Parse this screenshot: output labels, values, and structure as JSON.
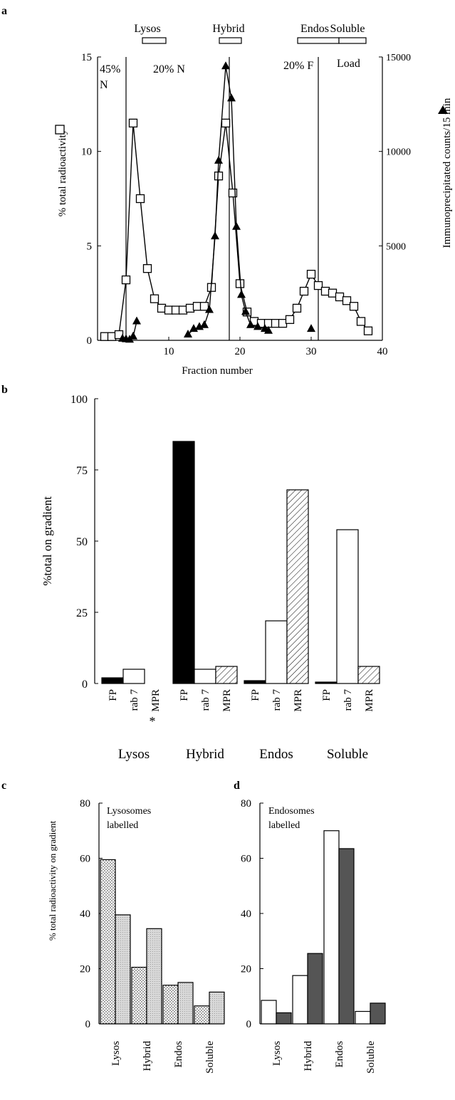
{
  "colors": {
    "ink": "#000000",
    "background": "#ffffff",
    "fp_fill": "#000000",
    "rab7_fill": "#ffffff",
    "mpr_fill": "hatched",
    "c_first_fill": "dotted light",
    "c_second_fill": "light grey stipple",
    "d_first_fill": "#ffffff",
    "d_second_fill": "#555555"
  },
  "chart_data": [
    {
      "panel": "a",
      "type": "line",
      "xlabel": "Fraction number",
      "ylabel": "% total radioactivity",
      "y2label": "Immunoprecipitated counts/15 min",
      "xlim": [
        0,
        40
      ],
      "ylim": [
        0,
        15
      ],
      "y2lim": [
        0,
        15000
      ],
      "xticks": [
        "10",
        "20",
        "30",
        "40"
      ],
      "yticks": [
        "0",
        "5",
        "10",
        "15"
      ],
      "y2ticks": [
        "5000",
        "10000",
        "15000"
      ],
      "series": [
        {
          "marker": "open-square",
          "axis": "left",
          "x": [
            1,
            2,
            3,
            4,
            5,
            6,
            7,
            8,
            9,
            10,
            11,
            12,
            13,
            14,
            15,
            16,
            17,
            18,
            19,
            20,
            21,
            22,
            23,
            24,
            25,
            26,
            27,
            28,
            29,
            30,
            31,
            32,
            33,
            34,
            35,
            36,
            37,
            38
          ],
          "y": [
            0.2,
            0.2,
            0.3,
            3.2,
            11.5,
            7.5,
            3.8,
            2.2,
            1.7,
            1.6,
            1.6,
            1.6,
            1.7,
            1.8,
            1.8,
            2.8,
            8.7,
            11.5,
            7.8,
            3.0,
            1.5,
            1.0,
            0.9,
            0.9,
            0.9,
            0.9,
            1.1,
            1.7,
            2.6,
            3.5,
            2.9,
            2.6,
            2.5,
            2.3,
            2.1,
            1.8,
            1.0,
            0.5
          ]
        },
        {
          "marker": "filled-triangle",
          "axis": "right",
          "x": [
            3.5,
            4,
            4.5,
            5,
            5.5,
            12.7,
            13.5,
            14.3,
            15,
            15.7,
            16.5,
            17,
            18,
            18.8,
            19.5,
            20.2,
            20.8,
            21.5,
            22.5,
            23.5,
            24,
            30
          ],
          "y": [
            80,
            50,
            30,
            200,
            1000,
            300,
            600,
            700,
            800,
            1600,
            5500,
            9500,
            14500,
            12800,
            6000,
            2400,
            1500,
            800,
            700,
            600,
            500,
            600
          ]
        }
      ],
      "vlines": [
        4,
        18.5,
        31
      ],
      "region_labels": [
        "45%",
        "N",
        "20% N",
        "20% F",
        "Load"
      ],
      "bands": [
        "Lysos",
        "Hybrid",
        "Endos",
        "Soluble"
      ]
    },
    {
      "panel": "b",
      "type": "bar",
      "ylabel": "%total on gradient",
      "ylim": [
        0,
        100
      ],
      "yticks": [
        "0",
        "25",
        "50",
        "75",
        "100"
      ],
      "groups": [
        "Lysos",
        "Hybrid",
        "Endos",
        "Soluble"
      ],
      "bar_labels": [
        "FP",
        "rab 7",
        "MPR"
      ],
      "series": [
        {
          "name": "FP",
          "fill": "black",
          "values": [
            2,
            85,
            1,
            0.5
          ]
        },
        {
          "name": "rab 7",
          "fill": "white",
          "values": [
            5,
            5,
            22,
            54
          ]
        },
        {
          "name": "MPR",
          "fill": "hatched",
          "values": [
            0,
            6,
            68,
            6
          ]
        }
      ],
      "annotation": "*"
    },
    {
      "panel": "c",
      "type": "bar",
      "ylabel": "% total radioactivity on gradient",
      "ylim": [
        0,
        80
      ],
      "yticks": [
        "0",
        "20",
        "40",
        "60",
        "80"
      ],
      "inset_text": [
        "Lysosomes",
        "labelled"
      ],
      "categories": [
        "Lysos",
        "Hybrid",
        "Endos",
        "Soluble"
      ],
      "series": [
        {
          "fill": "dotted",
          "values": [
            59.5,
            20.5,
            14,
            6.5
          ]
        },
        {
          "fill": "light grey stipple",
          "values": [
            39.5,
            34.5,
            15,
            11.5
          ]
        }
      ]
    },
    {
      "panel": "d",
      "type": "bar",
      "ylim": [
        0,
        80
      ],
      "yticks": [
        "0",
        "20",
        "40",
        "60",
        "80"
      ],
      "inset_text": [
        "Endosomes",
        "labelled"
      ],
      "categories": [
        "Lysos",
        "Hybrid",
        "Endos",
        "Soluble"
      ],
      "series": [
        {
          "fill": "white",
          "values": [
            8.5,
            17.5,
            70,
            4.5
          ]
        },
        {
          "fill": "dark grey",
          "values": [
            4,
            25.5,
            63.5,
            7.5
          ]
        }
      ]
    }
  ]
}
